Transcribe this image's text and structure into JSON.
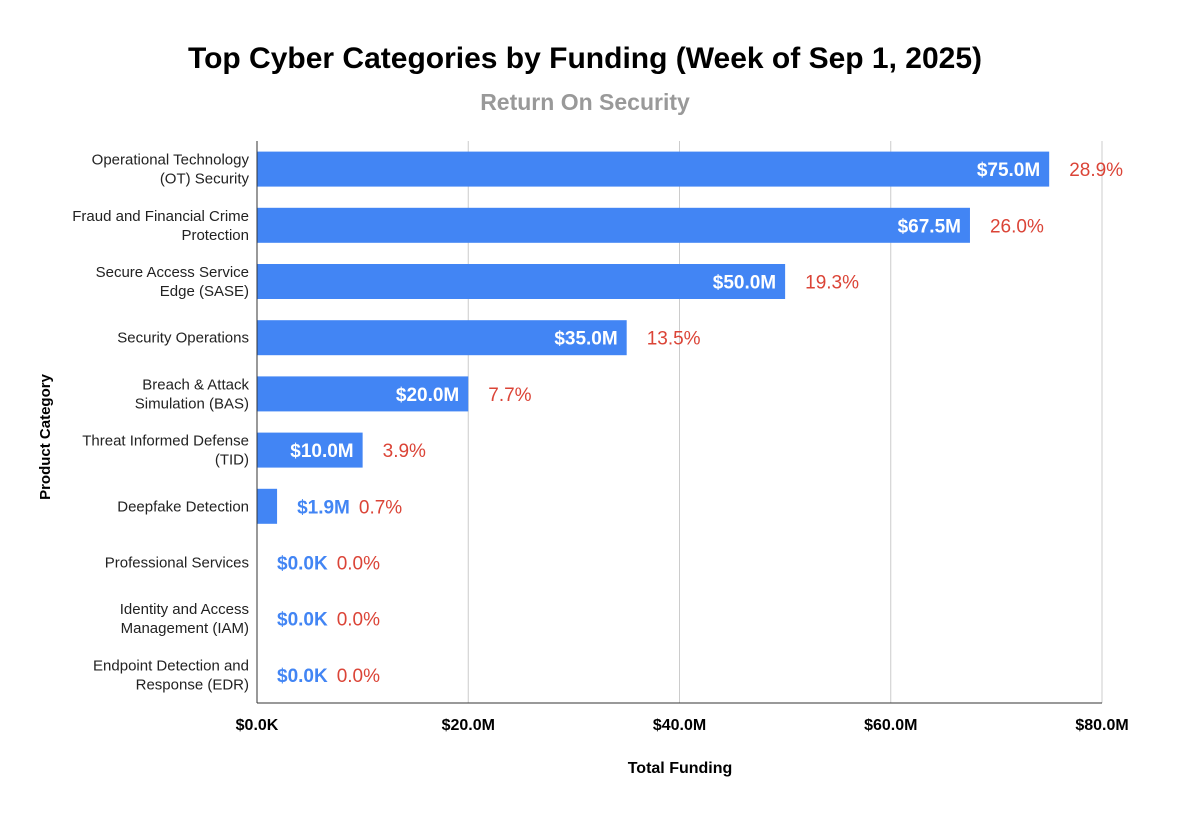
{
  "chart_data": {
    "type": "bar",
    "orientation": "horizontal",
    "title": "Top Cyber Categories by Funding (Week of Sep 1, 2025)",
    "subtitle": "Return On Security",
    "xlabel": "Total Funding",
    "ylabel": "Product Category",
    "xlim": [
      0,
      80
    ],
    "x_unit": "$M",
    "grid": true,
    "x_ticks": [
      {
        "value": 0,
        "label": "$0.0K"
      },
      {
        "value": 20,
        "label": "$20.0M"
      },
      {
        "value": 40,
        "label": "$40.0M"
      },
      {
        "value": 60,
        "label": "$60.0M"
      },
      {
        "value": 80,
        "label": "$80.0M"
      }
    ],
    "categories": [
      [
        "Operational Technology",
        "(OT) Security"
      ],
      [
        "Fraud and Financial Crime",
        "Protection"
      ],
      [
        "Secure Access Service",
        "Edge (SASE)"
      ],
      [
        "Security Operations"
      ],
      [
        "Breach & Attack",
        "Simulation (BAS)"
      ],
      [
        "Threat Informed Defense",
        "(TID)"
      ],
      [
        "Deepfake Detection"
      ],
      [
        "Professional Services"
      ],
      [
        "Identity and Access",
        "Management (IAM)"
      ],
      [
        "Endpoint Detection and",
        "Response (EDR)"
      ]
    ],
    "values": [
      75.0,
      67.5,
      50.0,
      35.0,
      20.0,
      10.0,
      1.9,
      0.0,
      0.0,
      0.0
    ],
    "value_labels": [
      "$75.0M",
      "$67.5M",
      "$50.0M",
      "$35.0M",
      "$20.0M",
      "$10.0M",
      "$1.9M",
      "$0.0K",
      "$0.0K",
      "$0.0K"
    ],
    "share_labels": [
      "28.9%",
      "26.0%",
      "19.3%",
      "13.5%",
      "7.7%",
      "3.9%",
      "0.7%",
      "0.0%",
      "0.0%",
      "0.0%"
    ],
    "colors": {
      "bar": "#4285f4",
      "value_label_inside": "#ffffff",
      "value_label_outside": "#4285f4",
      "share_label": "#db4437",
      "grid": "#cccccc",
      "axis": "#333333",
      "title": "#000000",
      "subtitle": "#999999",
      "text": "#222222"
    }
  }
}
